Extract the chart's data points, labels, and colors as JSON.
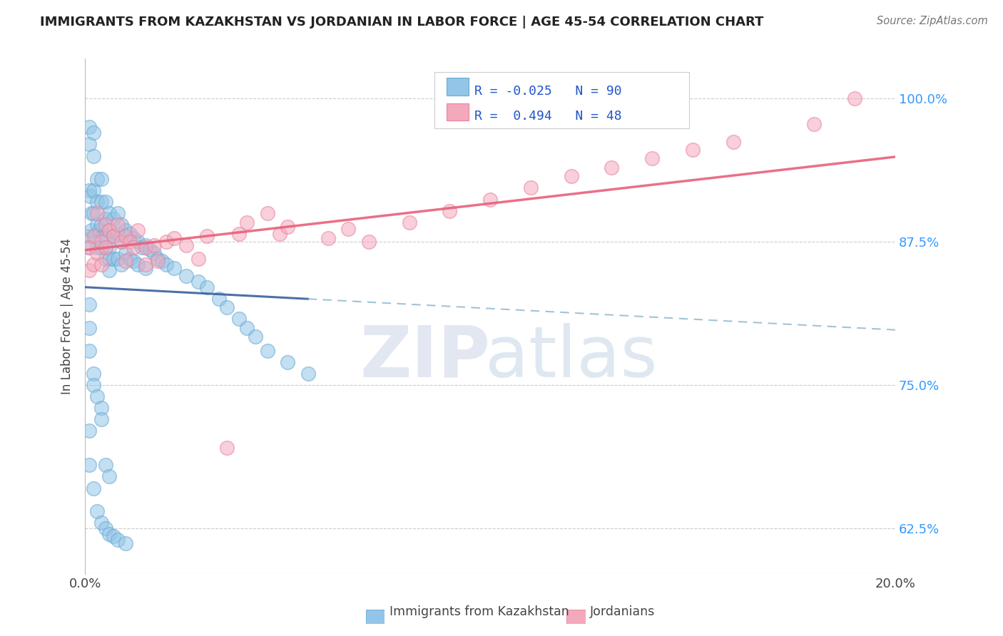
{
  "title": "IMMIGRANTS FROM KAZAKHSTAN VS JORDANIAN IN LABOR FORCE | AGE 45-54 CORRELATION CHART",
  "source": "Source: ZipAtlas.com",
  "ylabel": "In Labor Force | Age 45-54",
  "xlim": [
    0.0,
    0.2
  ],
  "ylim": [
    0.585,
    1.035
  ],
  "yticks": [
    0.625,
    0.75,
    0.875,
    1.0
  ],
  "ytick_labels": [
    "62.5%",
    "75.0%",
    "87.5%",
    "100.0%"
  ],
  "legend_labels": [
    "Immigrants from Kazakhstan",
    "Jordanians"
  ],
  "blue_color": "#92C5E8",
  "pink_color": "#F4A8BC",
  "blue_edge_color": "#6AAAD4",
  "pink_edge_color": "#E8849C",
  "blue_line_color": "#3B5FA0",
  "blue_dash_color": "#7AAAC8",
  "pink_line_color": "#E8607A",
  "R_blue": -0.025,
  "N_blue": 90,
  "R_pink": 0.494,
  "N_pink": 48,
  "background_color": "#ffffff",
  "grid_color": "#CCCCCC",
  "blue_x": [
    0.0005,
    0.0008,
    0.001,
    0.001,
    0.001,
    0.0012,
    0.0015,
    0.0015,
    0.002,
    0.002,
    0.002,
    0.002,
    0.0025,
    0.003,
    0.003,
    0.003,
    0.003,
    0.0035,
    0.004,
    0.004,
    0.004,
    0.004,
    0.0045,
    0.005,
    0.005,
    0.005,
    0.005,
    0.005,
    0.006,
    0.006,
    0.006,
    0.006,
    0.006,
    0.007,
    0.007,
    0.007,
    0.008,
    0.008,
    0.008,
    0.009,
    0.009,
    0.009,
    0.01,
    0.01,
    0.011,
    0.011,
    0.012,
    0.012,
    0.013,
    0.013,
    0.014,
    0.015,
    0.015,
    0.016,
    0.017,
    0.018,
    0.019,
    0.02,
    0.022,
    0.025,
    0.028,
    0.03,
    0.033,
    0.035,
    0.038,
    0.04,
    0.042,
    0.045,
    0.05,
    0.055,
    0.001,
    0.001,
    0.001,
    0.002,
    0.002,
    0.003,
    0.004,
    0.004,
    0.005,
    0.006,
    0.001,
    0.001,
    0.002,
    0.003,
    0.004,
    0.005,
    0.006,
    0.007,
    0.008,
    0.01
  ],
  "blue_y": [
    0.88,
    0.87,
    0.92,
    0.96,
    0.975,
    0.915,
    0.9,
    0.885,
    0.97,
    0.95,
    0.92,
    0.9,
    0.88,
    0.93,
    0.91,
    0.89,
    0.87,
    0.885,
    0.93,
    0.91,
    0.89,
    0.87,
    0.88,
    0.91,
    0.895,
    0.88,
    0.87,
    0.86,
    0.9,
    0.885,
    0.87,
    0.86,
    0.85,
    0.895,
    0.88,
    0.86,
    0.9,
    0.882,
    0.86,
    0.89,
    0.875,
    0.855,
    0.885,
    0.865,
    0.882,
    0.86,
    0.878,
    0.858,
    0.875,
    0.855,
    0.87,
    0.872,
    0.852,
    0.868,
    0.865,
    0.86,
    0.858,
    0.855,
    0.852,
    0.845,
    0.84,
    0.835,
    0.825,
    0.818,
    0.808,
    0.8,
    0.792,
    0.78,
    0.77,
    0.76,
    0.82,
    0.8,
    0.78,
    0.76,
    0.75,
    0.74,
    0.73,
    0.72,
    0.68,
    0.67,
    0.71,
    0.68,
    0.66,
    0.64,
    0.63,
    0.625,
    0.62,
    0.618,
    0.615,
    0.612
  ],
  "pink_x": [
    0.001,
    0.001,
    0.002,
    0.002,
    0.003,
    0.003,
    0.004,
    0.004,
    0.005,
    0.005,
    0.006,
    0.007,
    0.008,
    0.009,
    0.01,
    0.01,
    0.011,
    0.012,
    0.013,
    0.015,
    0.015,
    0.017,
    0.018,
    0.02,
    0.022,
    0.025,
    0.028,
    0.03,
    0.035,
    0.038,
    0.04,
    0.045,
    0.048,
    0.05,
    0.06,
    0.065,
    0.07,
    0.08,
    0.09,
    0.1,
    0.11,
    0.12,
    0.13,
    0.14,
    0.15,
    0.16,
    0.18,
    0.19
  ],
  "pink_y": [
    0.87,
    0.85,
    0.88,
    0.855,
    0.9,
    0.865,
    0.875,
    0.855,
    0.89,
    0.87,
    0.885,
    0.88,
    0.89,
    0.875,
    0.88,
    0.858,
    0.875,
    0.87,
    0.885,
    0.87,
    0.855,
    0.872,
    0.858,
    0.875,
    0.878,
    0.872,
    0.86,
    0.88,
    0.695,
    0.882,
    0.892,
    0.9,
    0.882,
    0.888,
    0.878,
    0.886,
    0.875,
    0.892,
    0.902,
    0.912,
    0.922,
    0.932,
    0.94,
    0.948,
    0.955,
    0.962,
    0.978,
    1.0
  ]
}
